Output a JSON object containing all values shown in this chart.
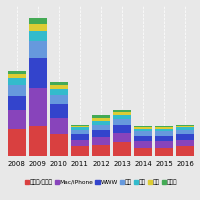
{
  "years": [
    "2008",
    "2009",
    "2010",
    "2011",
    "2012",
    "2013",
    "2014",
    "2015",
    "2016"
  ],
  "categories": [
    "ドラマ/テレビ",
    "Mac/iPhone",
    "WWW",
    "教育",
    "旅行",
    "音楽",
    "ブログ"
  ],
  "colors": [
    "#d94040",
    "#8844bb",
    "#3344cc",
    "#6699dd",
    "#33bbcc",
    "#ddcc33",
    "#44aa55"
  ],
  "data": {
    "ドラマ/テレビ": [
      20,
      22,
      16,
      7,
      8,
      10,
      6,
      6,
      7
    ],
    "Mac/iPhone": [
      14,
      28,
      12,
      5,
      6,
      7,
      5,
      5,
      5
    ],
    "WWW": [
      10,
      22,
      10,
      4,
      5,
      6,
      4,
      4,
      4
    ],
    "教育": [
      8,
      12,
      7,
      3,
      4,
      4,
      3,
      3,
      3
    ],
    "旅行": [
      5,
      8,
      4,
      2,
      3,
      3,
      2,
      2,
      2
    ],
    "音楽": [
      3,
      5,
      3,
      1,
      2,
      2,
      1,
      1,
      1
    ],
    "ブログ": [
      2,
      4,
      2,
      1,
      2,
      2,
      1,
      1,
      1
    ]
  },
  "background_color": "#e8e8e8",
  "plot_bg_color": "#e8e8e8",
  "ylim": [
    0,
    110
  ],
  "bar_width": 0.85,
  "legend_fontsize": 4.2,
  "tick_fontsize": 5.0,
  "figsize": [
    2.0,
    2.0
  ],
  "dpi": 100
}
